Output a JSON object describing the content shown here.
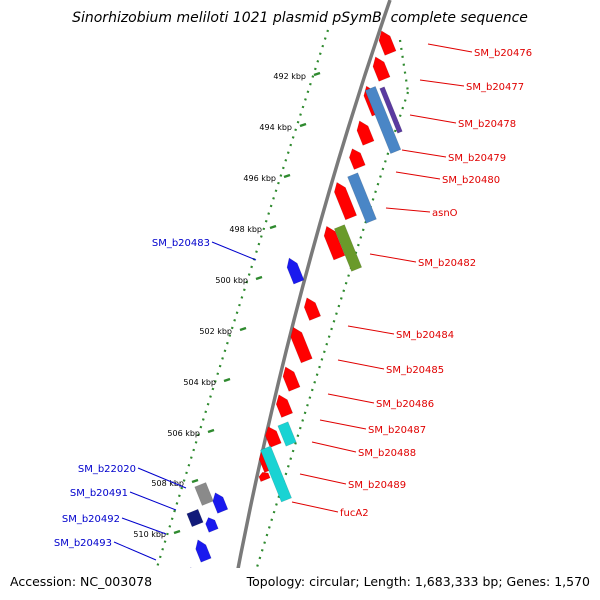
{
  "title": "Sinorhizobium meliloti 1021 plasmid pSymB, complete sequence",
  "footer": {
    "accession": "Accession: NC_003078",
    "topology": "Topology: circular; Length: 1,683,333 bp; Genes: 1,570"
  },
  "colors": {
    "backbone": "#7a7a7a",
    "ticks": "#2f8a2f",
    "forward_label": "#e00000",
    "reverse_label": "#0000cc"
  },
  "scale": {
    "unit": "kbp",
    "labels": [
      "492 kbp",
      "494 kbp",
      "496 kbp",
      "498 kbp",
      "500 kbp",
      "502 kbp",
      "504 kbp",
      "506 kbp",
      "508 kbp",
      "510 kbp"
    ]
  },
  "forward_labels": [
    "SM_b20476",
    "SM_b20477",
    "SM_b20478",
    "SM_b20479",
    "SM_b20480",
    "asnO",
    "SM_b20482",
    "SM_b20484",
    "SM_b20485",
    "SM_b20486",
    "SM_b20487",
    "SM_b20488",
    "SM_b20489",
    "fucA2"
  ],
  "reverse_labels": [
    "SM_b20483",
    "SM_b22020",
    "SM_b20491",
    "SM_b20492",
    "SM_b20493"
  ],
  "feature_colors": {
    "cds_forward": "#ff0000",
    "cds_reverse": "#1a1aee",
    "cog_blue": "#4a86c6",
    "cog_purple": "#5a3aa0",
    "cog_olive": "#6a9a2a",
    "cog_cyan": "#19d3d3",
    "cog_gray": "#8a8a8a",
    "cog_navy": "#121b7a"
  }
}
